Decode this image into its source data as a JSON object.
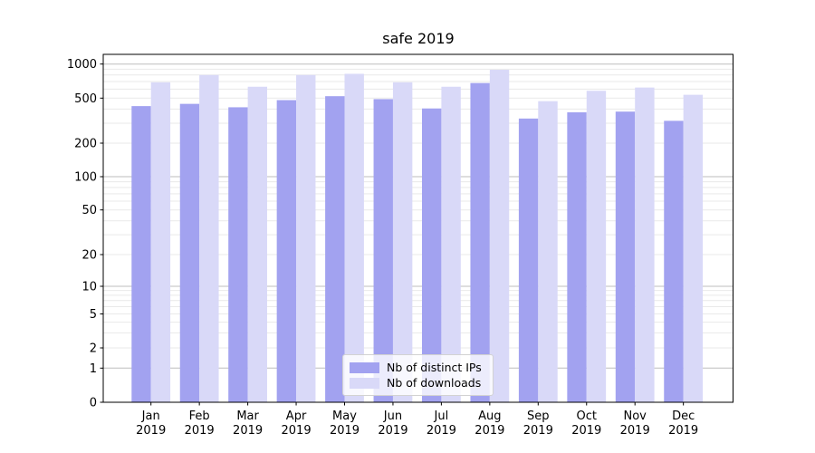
{
  "chart_data": {
    "type": "bar",
    "title": "safe 2019",
    "x_tick_year": "2019",
    "categories": [
      "Jan 2019",
      "Feb 2019",
      "Mar 2019",
      "Apr 2019",
      "May 2019",
      "Jun 2019",
      "Jul 2019",
      "Aug 2019",
      "Sep 2019",
      "Oct 2019",
      "Nov 2019",
      "Dec 2019"
    ],
    "months": [
      "Jan",
      "Feb",
      "Mar",
      "Apr",
      "May",
      "Jun",
      "Jul",
      "Aug",
      "Sep",
      "Oct",
      "Nov",
      "Dec"
    ],
    "series": [
      {
        "name": "Nb of distinct IPs",
        "color": "#a2a2f0",
        "values": [
          425,
          445,
          415,
          480,
          520,
          490,
          405,
          680,
          330,
          375,
          380,
          315
        ]
      },
      {
        "name": "Nb of downloads",
        "color": "#d9d9f8",
        "values": [
          690,
          800,
          630,
          800,
          820,
          690,
          630,
          890,
          470,
          580,
          620,
          535
        ]
      }
    ],
    "y_scale": "symlog",
    "y_ticks": [
      0,
      1,
      2,
      5,
      10,
      20,
      50,
      100,
      200,
      500,
      1000
    ],
    "ylim": [
      0,
      1250
    ],
    "xlabel": "",
    "ylabel": "",
    "grid": "both",
    "legend_position": "inside lower-center",
    "colors": {
      "bar_distinct_ips": "#a2a2f0",
      "bar_downloads": "#d9d9f8",
      "grid_major": "#bdbdbd",
      "grid_minor": "#e9e9e9",
      "axis": "#000000"
    }
  }
}
